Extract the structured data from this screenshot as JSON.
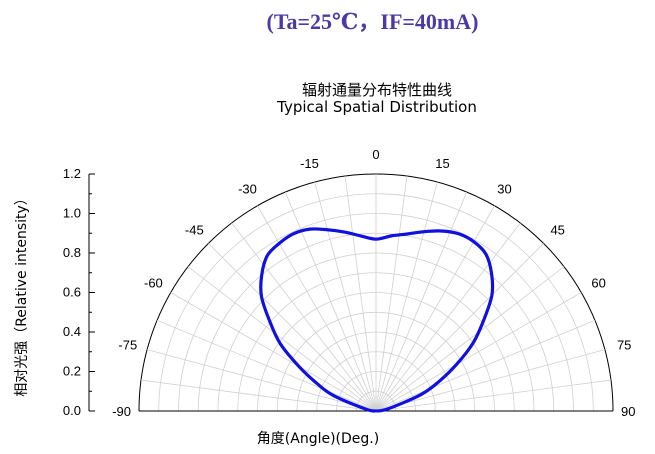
{
  "header": {
    "condition": "(Ta=25℃，IF=40mA)"
  },
  "chart_data": {
    "type": "polar-line",
    "title": "辐射通量分布特性曲线",
    "subtitle": "Typical Spatial Distribution",
    "xlabel": "角度(Angle)(Deg.)",
    "ylabel": "相对光强（Relative intensity）",
    "ylim": [
      0,
      1.2
    ],
    "radial_ticks": [
      "0.0",
      "0.2",
      "0.4",
      "0.6",
      "0.8",
      "1.0",
      "1.2"
    ],
    "angle_ticks": [
      "-90",
      "-75",
      "-60",
      "-45",
      "-30",
      "-15",
      "0",
      "15",
      "30",
      "45",
      "60",
      "75",
      "90"
    ],
    "angles": [
      -90,
      -80,
      -70,
      -65,
      -60,
      -55,
      -50,
      -45,
      -40,
      -35,
      -30,
      -25,
      -20,
      -15,
      -10,
      -5,
      0,
      5,
      10,
      15,
      20,
      25,
      30,
      35,
      40,
      45,
      50,
      55,
      60,
      65,
      70,
      80,
      90
    ],
    "values": [
      0.0,
      0.05,
      0.23,
      0.33,
      0.45,
      0.59,
      0.7,
      0.82,
      0.9,
      0.96,
      0.98,
      0.99,
      0.98,
      0.95,
      0.92,
      0.89,
      0.87,
      0.89,
      0.91,
      0.94,
      0.97,
      0.99,
      0.99,
      0.97,
      0.91,
      0.83,
      0.71,
      0.6,
      0.47,
      0.35,
      0.24,
      0.06,
      0.0
    ],
    "line_color": "#1010e0",
    "grid": true
  }
}
